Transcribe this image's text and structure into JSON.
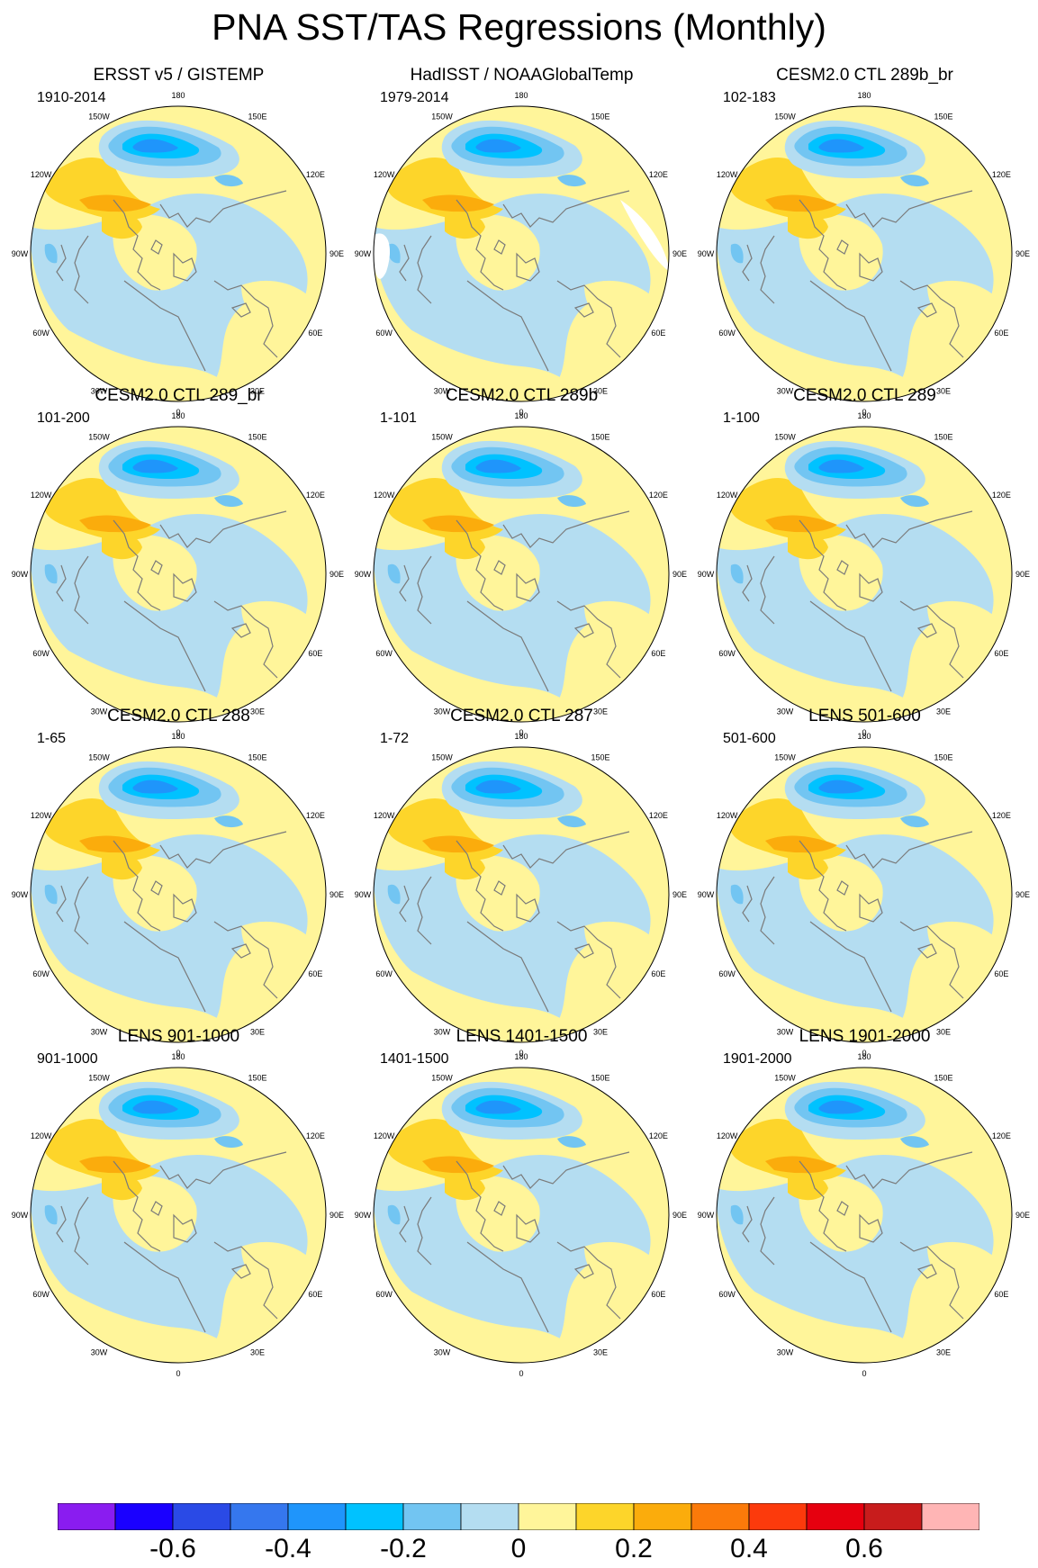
{
  "title": "PNA SST/TAS Regressions (Monthly)",
  "panels": [
    {
      "title": "ERSST v5 / GISTEMP",
      "period": "1910-2014",
      "has_missing": false
    },
    {
      "title": "HadISST / NOAAGlobalTemp",
      "period": "1979-2014",
      "has_missing": true
    },
    {
      "title": "CESM2.0 CTL 289b_br",
      "period": "102-183",
      "has_missing": false
    },
    {
      "title": "CESM2.0 CTL 289_br",
      "period": "101-200",
      "has_missing": false
    },
    {
      "title": "CESM2.0 CTL 289b",
      "period": "1-101",
      "has_missing": false
    },
    {
      "title": "CESM2.0 CTL 289",
      "period": "1-100",
      "has_missing": false
    },
    {
      "title": "CESM2.0 CTL 288",
      "period": "1-65",
      "has_missing": false
    },
    {
      "title": "CESM2.0 CTL 287",
      "period": "1-72",
      "has_missing": false
    },
    {
      "title": "LENS 501-600",
      "period": "501-600",
      "has_missing": false
    },
    {
      "title": "LENS 901-1000",
      "period": "901-1000",
      "has_missing": false
    },
    {
      "title": "LENS 1401-1500",
      "period": "1401-1500",
      "has_missing": false
    },
    {
      "title": "LENS 1901-2000",
      "period": "1901-2000",
      "has_missing": false
    }
  ],
  "longitude_labels": [
    "180",
    "150E",
    "120E",
    "90E",
    "60E",
    "30E",
    "0",
    "30W",
    "60W",
    "90W",
    "120W",
    "150W"
  ],
  "colorbar": {
    "colors": [
      "#8a1cf0",
      "#1a00ff",
      "#2a4ae6",
      "#3577ee",
      "#1f95fb",
      "#00c2ff",
      "#72c5f2",
      "#b4ddf1",
      "#fff59a",
      "#fdd52a",
      "#fbac0c",
      "#fb7a0a",
      "#fc3a0c",
      "#e6000f",
      "#c81c1c",
      "#ffb5b5"
    ],
    "tick_labels": [
      "-0.6",
      "-0.4",
      "-0.2",
      "0",
      "0.2",
      "0.4",
      "0.6"
    ],
    "tick_boundary_index": [
      2,
      4,
      6,
      8,
      10,
      12,
      14
    ]
  }
}
